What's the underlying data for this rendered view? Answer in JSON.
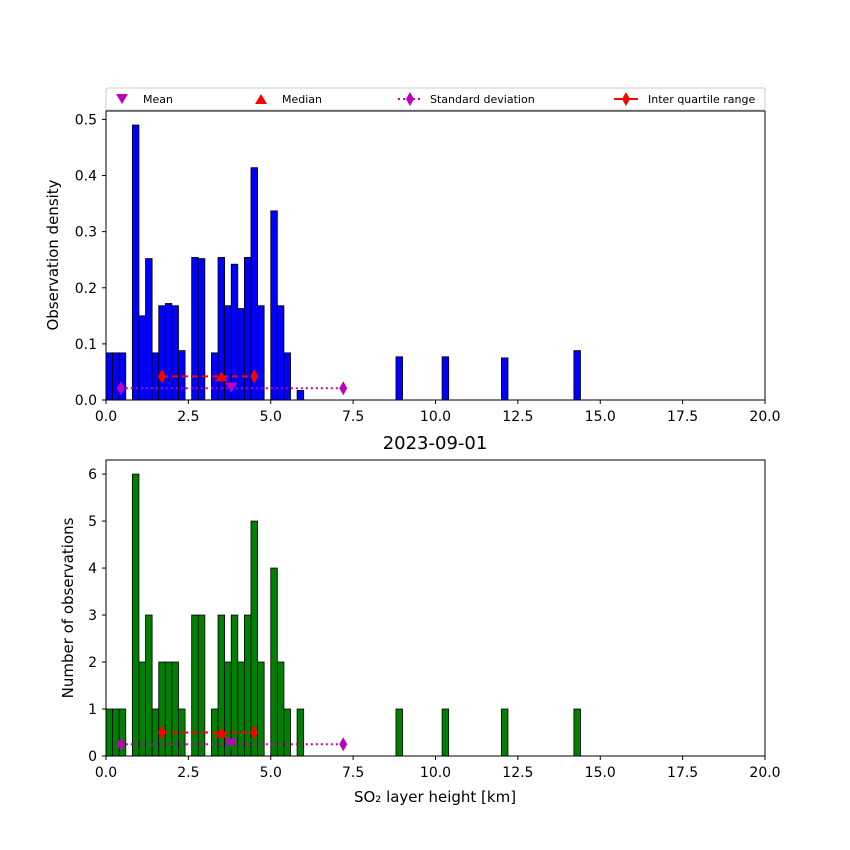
{
  "legend": {
    "mean": "Mean",
    "median": "Median",
    "std": "Standard deviation",
    "iqr": "Inter quartile range"
  },
  "colors": {
    "density_bars": "#0000ff",
    "count_bars": "#008000",
    "mean_marker": "#bf00bf",
    "median_marker": "#ff0000",
    "std_line": "#bf00bf",
    "iqr_line": "#ff0000"
  },
  "chart_data": [
    {
      "type": "bar",
      "xlabel": "",
      "ylabel": "Observation density",
      "xlim": [
        0,
        20
      ],
      "ylim": [
        0,
        0.515
      ],
      "xticks": [
        "0.0",
        "2.5",
        "5.0",
        "7.5",
        "10.0",
        "12.5",
        "15.0",
        "17.5",
        "20.0"
      ],
      "yticks": [
        "0.0",
        "0.1",
        "0.2",
        "0.3",
        "0.4",
        "0.5"
      ],
      "legend_position": "top",
      "bin_width": 0.2,
      "bins": [
        {
          "x": 0.0,
          "value": 0.084
        },
        {
          "x": 0.2,
          "value": 0.084
        },
        {
          "x": 0.4,
          "value": 0.084
        },
        {
          "x": 0.8,
          "value": 0.49
        },
        {
          "x": 1.0,
          "value": 0.15
        },
        {
          "x": 1.2,
          "value": 0.252
        },
        {
          "x": 1.4,
          "value": 0.084
        },
        {
          "x": 1.6,
          "value": 0.168
        },
        {
          "x": 1.8,
          "value": 0.172
        },
        {
          "x": 2.0,
          "value": 0.168
        },
        {
          "x": 2.2,
          "value": 0.088
        },
        {
          "x": 2.6,
          "value": 0.254
        },
        {
          "x": 2.8,
          "value": 0.252
        },
        {
          "x": 3.2,
          "value": 0.084
        },
        {
          "x": 3.4,
          "value": 0.254
        },
        {
          "x": 3.6,
          "value": 0.168
        },
        {
          "x": 3.8,
          "value": 0.242
        },
        {
          "x": 4.0,
          "value": 0.163
        },
        {
          "x": 4.2,
          "value": 0.254
        },
        {
          "x": 4.4,
          "value": 0.414
        },
        {
          "x": 4.6,
          "value": 0.168
        },
        {
          "x": 5.0,
          "value": 0.337
        },
        {
          "x": 5.2,
          "value": 0.168
        },
        {
          "x": 5.4,
          "value": 0.084
        },
        {
          "x": 5.8,
          "value": 0.017
        },
        {
          "x": 8.8,
          "value": 0.077
        },
        {
          "x": 10.2,
          "value": 0.077
        },
        {
          "x": 12.0,
          "value": 0.075
        },
        {
          "x": 14.2,
          "value": 0.088
        }
      ],
      "stats": {
        "mean": 3.8,
        "median": 3.5,
        "std_range": [
          0.45,
          7.2
        ],
        "iqr_range": [
          1.7,
          4.5
        ],
        "mean_y": 0.022,
        "median_y": 0.042,
        "std_y": 0.021,
        "iqr_y": 0.042
      }
    },
    {
      "type": "bar",
      "title": "2023-09-01",
      "xlabel": "SO₂ layer height [km]",
      "ylabel": "Number of observations",
      "xlim": [
        0,
        20
      ],
      "ylim": [
        0,
        6.3
      ],
      "xticks": [
        "0.0",
        "2.5",
        "5.0",
        "7.5",
        "10.0",
        "12.5",
        "15.0",
        "17.5",
        "20.0"
      ],
      "yticks": [
        "0",
        "1",
        "2",
        "3",
        "4",
        "5",
        "6"
      ],
      "bin_width": 0.2,
      "bins": [
        {
          "x": 0.0,
          "value": 1
        },
        {
          "x": 0.2,
          "value": 1
        },
        {
          "x": 0.4,
          "value": 1
        },
        {
          "x": 0.8,
          "value": 6
        },
        {
          "x": 1.0,
          "value": 2
        },
        {
          "x": 1.2,
          "value": 3
        },
        {
          "x": 1.4,
          "value": 1
        },
        {
          "x": 1.6,
          "value": 2
        },
        {
          "x": 1.8,
          "value": 2
        },
        {
          "x": 2.0,
          "value": 2
        },
        {
          "x": 2.2,
          "value": 1
        },
        {
          "x": 2.6,
          "value": 3
        },
        {
          "x": 2.8,
          "value": 3
        },
        {
          "x": 3.2,
          "value": 1
        },
        {
          "x": 3.4,
          "value": 3
        },
        {
          "x": 3.6,
          "value": 2
        },
        {
          "x": 3.8,
          "value": 3
        },
        {
          "x": 4.0,
          "value": 2
        },
        {
          "x": 4.2,
          "value": 3
        },
        {
          "x": 4.4,
          "value": 5
        },
        {
          "x": 4.6,
          "value": 2
        },
        {
          "x": 5.0,
          "value": 4
        },
        {
          "x": 5.2,
          "value": 2
        },
        {
          "x": 5.4,
          "value": 1
        },
        {
          "x": 5.8,
          "value": 1
        },
        {
          "x": 8.8,
          "value": 1
        },
        {
          "x": 10.2,
          "value": 1
        },
        {
          "x": 12.0,
          "value": 1
        },
        {
          "x": 14.2,
          "value": 1
        }
      ],
      "stats": {
        "mean": 3.8,
        "median": 3.5,
        "std_range": [
          0.45,
          7.2
        ],
        "iqr_range": [
          1.7,
          4.5
        ],
        "mean_y": 0.27,
        "median_y": 0.5,
        "std_y": 0.25,
        "iqr_y": 0.5
      }
    }
  ]
}
